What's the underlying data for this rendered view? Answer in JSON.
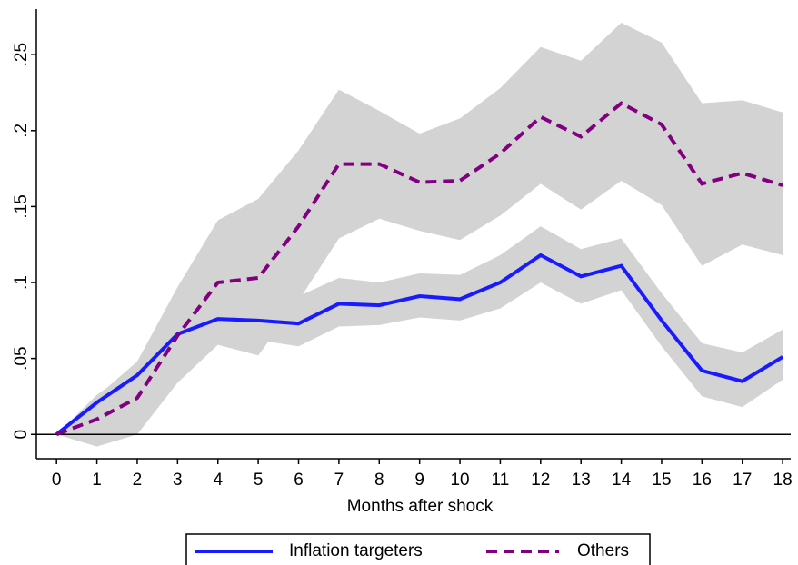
{
  "chart_data": {
    "type": "line",
    "x_label": "Months after shock",
    "x": [
      0,
      1,
      2,
      3,
      4,
      5,
      6,
      7,
      8,
      9,
      10,
      11,
      12,
      13,
      14,
      15,
      16,
      17,
      18
    ],
    "xlim": [
      -0.5,
      18.2
    ],
    "xticks": [
      0,
      1,
      2,
      3,
      4,
      5,
      6,
      7,
      8,
      9,
      10,
      11,
      12,
      13,
      14,
      15,
      16,
      17,
      18
    ],
    "ylim": [
      -0.016,
      0.28
    ],
    "yticks": [
      {
        "value": 0,
        "label": "0"
      },
      {
        "value": 0.05,
        "label": ".05"
      },
      {
        "value": 0.1,
        "label": ".1"
      },
      {
        "value": 0.15,
        "label": ".15"
      },
      {
        "value": 0.2,
        "label": ".2"
      },
      {
        "value": 0.25,
        "label": ".25"
      }
    ],
    "zero_line": true,
    "ci_color": "#d3d3d3",
    "legend": "bottom",
    "series": [
      {
        "name": "Inflation targeters",
        "color": "#1a1aff",
        "dash": "solid",
        "values": [
          0,
          0.021,
          0.039,
          0.066,
          0.076,
          0.075,
          0.073,
          0.086,
          0.085,
          0.091,
          0.089,
          0.1,
          0.118,
          0.104,
          0.111,
          0.075,
          0.042,
          0.035,
          0.051
        ],
        "ci_upper": [
          0,
          0.026,
          0.045,
          0.07,
          0.085,
          0.083,
          0.091,
          0.103,
          0.1,
          0.106,
          0.105,
          0.118,
          0.137,
          0.122,
          0.129,
          0.093,
          0.06,
          0.054,
          0.069
        ],
        "ci_lower": [
          0,
          0.015,
          0.033,
          0.06,
          0.066,
          0.062,
          0.058,
          0.071,
          0.072,
          0.077,
          0.075,
          0.083,
          0.1,
          0.086,
          0.095,
          0.058,
          0.025,
          0.018,
          0.036
        ]
      },
      {
        "name": "Others",
        "color": "#800080",
        "dash": "dashed",
        "values": [
          0,
          0.01,
          0.024,
          0.065,
          0.1,
          0.103,
          0.137,
          0.178,
          0.178,
          0.166,
          0.167,
          0.185,
          0.209,
          0.196,
          0.218,
          0.204,
          0.165,
          0.172,
          0.164
        ],
        "ci_upper": [
          0,
          0.025,
          0.048,
          0.097,
          0.141,
          0.155,
          0.187,
          0.227,
          0.213,
          0.198,
          0.208,
          0.228,
          0.255,
          0.246,
          0.271,
          0.258,
          0.218,
          0.22,
          0.212
        ],
        "ci_lower": [
          0,
          -0.008,
          0,
          0.034,
          0.059,
          0.052,
          0.088,
          0.129,
          0.142,
          0.134,
          0.128,
          0.144,
          0.165,
          0.148,
          0.167,
          0.151,
          0.111,
          0.125,
          0.118
        ]
      }
    ]
  }
}
